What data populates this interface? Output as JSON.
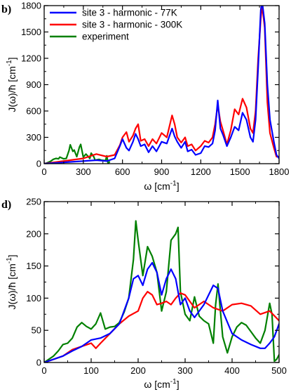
{
  "colors": {
    "blue": "#0000ff",
    "red": "#ff0000",
    "green": "#008000"
  },
  "chart_data": [
    {
      "type": "line",
      "panel_label": "b)",
      "xlabel_main": "ω  [cm",
      "xlabel_sup": "-1",
      "xlabel_close": "]",
      "ylabel_main": "J(ω)/ħ [cm",
      "ylabel_sup": "-1",
      "ylabel_close": "]",
      "xlim": [
        0,
        1800
      ],
      "ylim": [
        0,
        1800
      ],
      "xticks": [
        0,
        300,
        600,
        900,
        1200,
        1500,
        1800
      ],
      "yticks": [
        0,
        300,
        600,
        900,
        1200,
        1500,
        1800
      ],
      "legend": {
        "position": "top-left"
      },
      "series": [
        {
          "name": "site 3 - harmonic - 77K",
          "color": "#0000ff",
          "x": [
            0,
            100,
            200,
            300,
            400,
            480,
            540,
            580,
            600,
            630,
            650,
            680,
            700,
            720,
            740,
            770,
            800,
            830,
            860,
            900,
            940,
            980,
            1000,
            1020,
            1050,
            1080,
            1100,
            1130,
            1160,
            1200,
            1230,
            1260,
            1290,
            1310,
            1330,
            1350,
            1370,
            1400,
            1430,
            1460,
            1490,
            1520,
            1550,
            1580,
            1600,
            1620,
            1640,
            1660,
            1670,
            1690,
            1710,
            1730,
            1760,
            1780,
            1800
          ],
          "y": [
            0,
            10,
            20,
            30,
            40,
            30,
            60,
            200,
            280,
            180,
            150,
            250,
            340,
            280,
            200,
            220,
            130,
            200,
            140,
            250,
            230,
            400,
            310,
            250,
            180,
            250,
            140,
            160,
            100,
            120,
            200,
            190,
            230,
            380,
            720,
            400,
            330,
            200,
            300,
            420,
            380,
            580,
            500,
            300,
            250,
            500,
            1100,
            1750,
            1850,
            1600,
            900,
            500,
            250,
            100,
            60
          ]
        },
        {
          "name": "site 3 - harmonic - 300K",
          "color": "#ff0000",
          "x": [
            0,
            100,
            200,
            300,
            400,
            480,
            540,
            580,
            600,
            630,
            650,
            680,
            700,
            720,
            740,
            770,
            800,
            830,
            860,
            900,
            940,
            980,
            1000,
            1020,
            1050,
            1080,
            1100,
            1130,
            1160,
            1200,
            1230,
            1260,
            1290,
            1310,
            1330,
            1350,
            1370,
            1400,
            1430,
            1460,
            1490,
            1520,
            1550,
            1580,
            1600,
            1620,
            1640,
            1660,
            1670,
            1690,
            1710,
            1730,
            1760,
            1780,
            1800
          ],
          "y": [
            0,
            20,
            40,
            60,
            110,
            80,
            100,
            210,
            300,
            360,
            250,
            320,
            400,
            450,
            260,
            280,
            200,
            280,
            230,
            350,
            300,
            550,
            450,
            300,
            240,
            300,
            200,
            220,
            150,
            200,
            260,
            240,
            300,
            450,
            670,
            480,
            380,
            220,
            380,
            620,
            560,
            740,
            640,
            400,
            350,
            600,
            1200,
            1650,
            1800,
            1550,
            700,
            350,
            180,
            80,
            80
          ]
        },
        {
          "name": "experiment",
          "color": "#008000",
          "x": [
            0,
            20,
            50,
            70,
            90,
            110,
            120,
            150,
            170,
            190,
            200,
            220,
            230,
            250,
            270,
            280,
            300,
            320,
            350,
            360,
            380,
            390,
            420,
            440,
            470,
            480,
            490,
            500
          ],
          "y": [
            0,
            8,
            28,
            50,
            60,
            55,
            75,
            55,
            60,
            150,
            215,
            140,
            155,
            80,
            190,
            220,
            75,
            110,
            60,
            120,
            80,
            40,
            50,
            40,
            35,
            90,
            0,
            20
          ]
        }
      ]
    },
    {
      "type": "line",
      "panel_label": "d)",
      "xlabel_main": "ω  [cm",
      "xlabel_sup": "-1",
      "xlabel_close": "]",
      "ylabel_main": "J(ω)/ħ [cm",
      "ylabel_sup": "-1",
      "ylabel_close": "]",
      "xlim": [
        0,
        500
      ],
      "ylim": [
        0,
        250
      ],
      "xticks": [
        0,
        100,
        200,
        300,
        400,
        500
      ],
      "yticks": [
        0,
        50,
        100,
        150,
        200,
        250
      ],
      "series": [
        {
          "name": "site 3 - harmonic - 77K",
          "color": "#0000ff",
          "x": [
            0,
            20,
            40,
            60,
            80,
            100,
            120,
            140,
            160,
            180,
            190,
            200,
            210,
            220,
            230,
            240,
            250,
            260,
            270,
            280,
            290,
            300,
            310,
            320,
            340,
            360,
            370,
            380,
            400,
            420,
            440,
            460,
            470,
            480,
            490,
            500
          ],
          "y": [
            0,
            5,
            10,
            18,
            25,
            35,
            38,
            45,
            60,
            100,
            130,
            135,
            120,
            145,
            155,
            140,
            105,
            130,
            145,
            130,
            90,
            100,
            80,
            70,
            90,
            120,
            115,
            80,
            45,
            35,
            28,
            22,
            22,
            30,
            40,
            60
          ]
        },
        {
          "name": "site 3 - harmonic - 300K",
          "color": "#ff0000",
          "x": [
            0,
            20,
            40,
            60,
            80,
            100,
            110,
            120,
            140,
            160,
            180,
            200,
            210,
            220,
            230,
            240,
            250,
            260,
            270,
            280,
            290,
            300,
            320,
            340,
            360,
            380,
            400,
            420,
            440,
            460,
            480,
            500
          ],
          "y": [
            0,
            5,
            10,
            20,
            25,
            30,
            22,
            30,
            45,
            60,
            72,
            80,
            100,
            110,
            105,
            90,
            92,
            95,
            90,
            100,
            108,
            105,
            85,
            95,
            85,
            80,
            90,
            92,
            88,
            75,
            80,
            65
          ]
        },
        {
          "name": "experiment",
          "color": "#008000",
          "x": [
            0,
            10,
            20,
            30,
            40,
            50,
            60,
            70,
            80,
            90,
            100,
            110,
            120,
            130,
            140,
            150,
            160,
            170,
            180,
            190,
            195,
            200,
            210,
            220,
            230,
            240,
            250,
            260,
            270,
            280,
            285,
            290,
            300,
            310,
            320,
            330,
            340,
            350,
            360,
            365,
            370,
            380,
            390,
            400,
            410,
            420,
            430,
            440,
            450,
            460,
            470,
            480,
            485,
            490,
            495,
            500
          ],
          "y": [
            0,
            5,
            10,
            18,
            28,
            30,
            38,
            55,
            62,
            56,
            52,
            60,
            77,
            52,
            55,
            56,
            62,
            78,
            100,
            160,
            220,
            190,
            135,
            180,
            165,
            140,
            80,
            110,
            190,
            200,
            210,
            110,
            75,
            65,
            102,
            72,
            65,
            60,
            30,
            90,
            122,
            40,
            15,
            40,
            55,
            62,
            58,
            48,
            38,
            30,
            50,
            92,
            75,
            2,
            5,
            12
          ]
        }
      ]
    }
  ]
}
